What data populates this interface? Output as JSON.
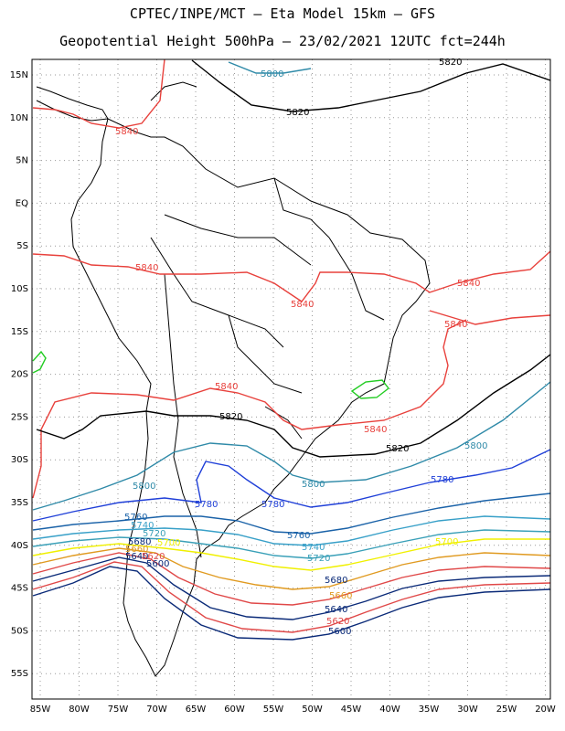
{
  "title_line1": "CPTEC/INPE/MCT –  Eta Model 15km – GFS",
  "title_line2": "Geopotential Height 500hPa – 23/02/2021 12UTC fct=244h",
  "lat_ticks": [
    "15N",
    "10N",
    "5N",
    "EQ",
    "5S",
    "10S",
    "15S",
    "20S",
    "25S",
    "30S",
    "35S",
    "40S",
    "45S",
    "50S",
    "55S"
  ],
  "lon_ticks": [
    "85W",
    "80W",
    "75W",
    "70W",
    "65W",
    "60W",
    "55W",
    "50W",
    "45W",
    "40W",
    "35W",
    "30W",
    "25W",
    "20W"
  ],
  "colors": {
    "c5840": "#e8413c",
    "c5820": "#000000",
    "c5800": "#2f8aa8",
    "c5780": "#1f3fd8",
    "c5760": "#1a62a8",
    "c5740": "#38a0c8",
    "c5720": "#3aa0b8",
    "c5700": "#f0f000",
    "c5680": "#e09a20",
    "c5660": "#e04848",
    "c5640": "#0a2a78",
    "green": "#22cc22"
  },
  "labels": {
    "l5840_a": "5840",
    "l5840_b": "5840",
    "l5840_c": "5840",
    "l5840_d": "5840",
    "l5840_e": "5840",
    "l5840_f": "5840",
    "l5840_g": "5840",
    "l5820_a": "5820",
    "l5820_b": "5820",
    "l5820_c": "5820",
    "l5820_d": "5820",
    "l5800_a": "5800",
    "l5800_b": "5800",
    "l5800_c": "5800",
    "l5800_d": "5800",
    "l5780_a": "5780",
    "l5780_b": "5780",
    "l5780_c": "5780",
    "l5760_a": "5760",
    "l5760_b": "5760",
    "l5740_a": "5740",
    "l5740_b": "5740",
    "l5720_a": "5720",
    "l5720_b": "5720",
    "l5700_a": "5700",
    "l5700_b": "5700",
    "l5680_a": "5680",
    "l5680_b": "5680",
    "l5660_a": "5660",
    "l5660_b": "5660",
    "l5640_a": "5640",
    "l5640_b": "5640",
    "l5620_a": "5620",
    "l5620_b": "5620",
    "l5600_a": "5600",
    "l5600_b": "5600"
  }
}
